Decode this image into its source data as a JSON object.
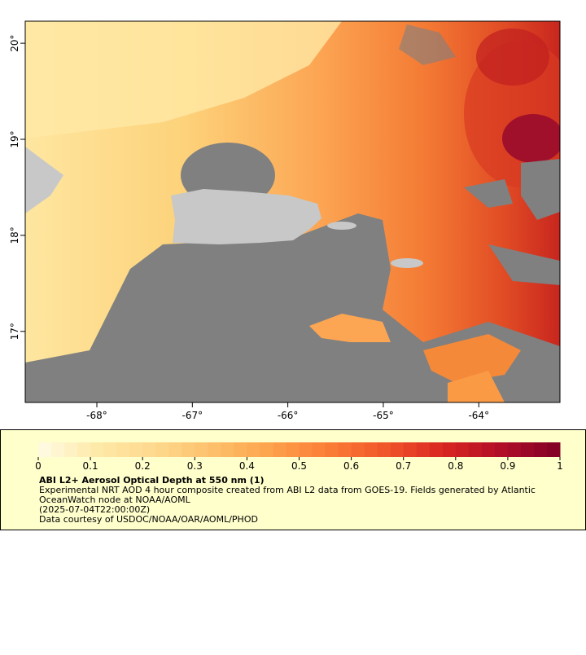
{
  "map": {
    "xlim": [
      -68.75,
      -63.15
    ],
    "ylim": [
      16.26,
      20.23
    ],
    "xticks": [
      {
        "value": -68,
        "label": "-68°"
      },
      {
        "value": -67,
        "label": "-67°"
      },
      {
        "value": -66,
        "label": "-66°"
      },
      {
        "value": -65,
        "label": "-65°"
      },
      {
        "value": -64,
        "label": "-64°"
      }
    ],
    "yticks": [
      {
        "value": 17,
        "label": "17°"
      },
      {
        "value": 18,
        "label": "18°"
      },
      {
        "value": 19,
        "label": "19°"
      },
      {
        "value": 20,
        "label": "20°"
      }
    ]
  },
  "colorbar": {
    "lim": [
      0,
      1
    ],
    "ticks": [
      0,
      0.1,
      0.2,
      0.3,
      0.4,
      0.5,
      0.6,
      0.7,
      0.8,
      0.9,
      1
    ],
    "colors": [
      "#fffbe6",
      "#feeaa8",
      "#fed98e",
      "#fdc06a",
      "#fda24c",
      "#fb7d36",
      "#f0562a",
      "#d92520",
      "#b00e28",
      "#800026"
    ]
  },
  "legend": {
    "title": "ABI L2+ Aerosol Optical Depth at 550 nm (1)",
    "lines": [
      "Experimental NRT AOD 4 hour composite created from ABI L2 data from GOES-19. Fields generated by Atlantic",
      "OceanWatch node at NOAA/AOML",
      "(2025-07-04T22:00:00Z)",
      "Data courtesy of USDOC/NOAA/OAR/AOML/PHOD"
    ]
  }
}
